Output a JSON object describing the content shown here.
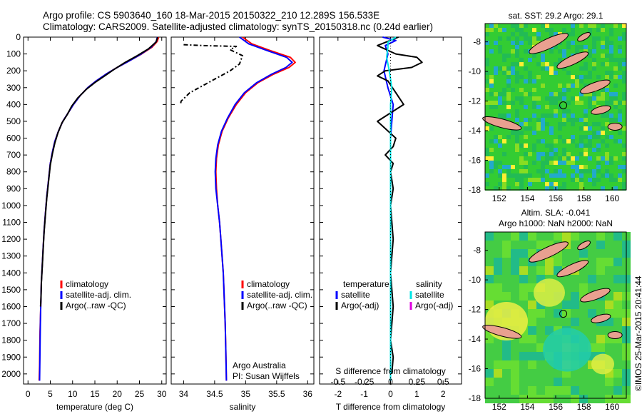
{
  "header": {
    "line1": "Argo profile: CS 5903640_160 18-Mar-2015 20150322_210 12.289S 156.533E",
    "line2": "Climatology: CARS2009. Satellite-adjusted climatology: synTS_20150318.nc (0.24d earlier)"
  },
  "colors": {
    "clim": "#ff0000",
    "sat": "#0000ff",
    "argo": "#000000",
    "sal_sat": "#00e5e5",
    "sal_argo": "#e000e0",
    "land": "#e9a090"
  },
  "chart_data": [
    {
      "type": "line",
      "id": "temperature",
      "xlabel": "temperature (deg C)",
      "ylabel": "",
      "xlim": [
        -1,
        31
      ],
      "ylim": [
        2060,
        0
      ],
      "xticks": [
        0,
        5,
        10,
        15,
        20,
        25,
        30
      ],
      "xtick_labels": [
        "0",
        "5",
        "10",
        "15",
        "20",
        "25",
        "30"
      ],
      "yticks": [
        0,
        100,
        200,
        300,
        400,
        500,
        600,
        700,
        800,
        900,
        1000,
        1100,
        1200,
        1300,
        1400,
        1500,
        1600,
        1700,
        1800,
        1900,
        2000
      ],
      "ytick_labels": [
        "0",
        "100",
        "200",
        "300",
        "400",
        "500",
        "600",
        "700",
        "800",
        "900",
        "1000",
        "1100",
        "1200",
        "1300",
        "1400",
        "1500",
        "1600",
        "1700",
        "1800",
        "1900",
        "2000"
      ],
      "legend": [
        "climatology",
        "satellite-adj. clim.",
        "Argo(..raw -QC)"
      ],
      "series": [
        {
          "name": "climatology",
          "color": "#ff0000",
          "x": [
            29.3,
            29.0,
            27.8,
            25.5,
            22.8,
            20.0,
            17.5,
            15.3,
            13.4,
            11.6,
            10.2,
            9.0,
            7.8,
            6.8,
            6.0,
            5.5,
            5.0,
            4.6,
            4.2,
            3.9,
            3.6,
            3.4,
            3.2,
            3.0,
            2.9,
            2.8,
            2.7,
            2.65,
            2.6,
            2.5
          ],
          "y": [
            0,
            25,
            60,
            100,
            140,
            180,
            220,
            260,
            300,
            350,
            400,
            450,
            500,
            560,
            620,
            680,
            750,
            850,
            950,
            1050,
            1150,
            1250,
            1350,
            1450,
            1550,
            1650,
            1750,
            1850,
            1950,
            2040
          ]
        },
        {
          "name": "satellite-adj. clim.",
          "color": "#0000ff",
          "x": [
            29.0,
            28.8,
            27.6,
            25.4,
            22.8,
            20.0,
            17.5,
            15.3,
            13.4,
            11.6,
            10.2,
            9.0,
            7.8,
            6.8,
            6.0,
            5.5,
            5.0,
            4.6,
            4.2,
            3.9,
            3.6,
            3.4,
            3.2,
            3.0,
            2.9,
            2.8,
            2.75,
            2.7,
            2.65,
            2.6
          ],
          "y": [
            0,
            25,
            60,
            100,
            140,
            180,
            220,
            260,
            300,
            350,
            400,
            450,
            500,
            560,
            620,
            680,
            750,
            850,
            950,
            1050,
            1150,
            1250,
            1350,
            1450,
            1550,
            1650,
            1750,
            1850,
            1950,
            2040
          ]
        },
        {
          "name": "Argo(..raw -QC)",
          "color": "#000000",
          "x": [
            29.1,
            28.7,
            27.0,
            24.5,
            21.8,
            19.4,
            17.2,
            15.0,
            13.1,
            11.2,
            9.8,
            8.8,
            7.6,
            6.7,
            6.0,
            5.5,
            5.0,
            4.6,
            4.2,
            3.9,
            3.6,
            3.4,
            3.2,
            3.0,
            2.9,
            2.8
          ],
          "y": [
            0,
            30,
            70,
            110,
            150,
            190,
            230,
            270,
            310,
            360,
            410,
            460,
            510,
            570,
            630,
            690,
            760,
            860,
            960,
            1060,
            1160,
            1260,
            1360,
            1460,
            1560,
            1600
          ]
        }
      ]
    },
    {
      "type": "line",
      "id": "salinity",
      "xlabel": "salinity",
      "ylabel": "",
      "xlim": [
        33.8,
        36.1
      ],
      "ylim": [
        2060,
        0
      ],
      "xticks": [
        34,
        34.5,
        35,
        35.5,
        36
      ],
      "xtick_labels": [
        "34",
        "34.5",
        "35",
        "35.5",
        "36"
      ],
      "legend": [
        "climatology",
        "satellite-adj. clim.",
        "Argo(..raw -QC)"
      ],
      "annotation": [
        "Argo Australia",
        "PI: Susan Wijffels"
      ],
      "series": [
        {
          "name": "climatology",
          "color": "#ff0000",
          "x": [
            34.95,
            35.1,
            35.4,
            35.72,
            35.8,
            35.7,
            35.45,
            35.2,
            35.0,
            34.85,
            34.72,
            34.62,
            34.56,
            34.53,
            34.52,
            34.53,
            34.55,
            34.58,
            34.6,
            34.62,
            34.64,
            34.65,
            34.66,
            34.67,
            34.68,
            34.69
          ],
          "y": [
            0,
            40,
            80,
            120,
            150,
            180,
            220,
            270,
            330,
            400,
            480,
            560,
            640,
            720,
            800,
            900,
            1000,
            1100,
            1200,
            1300,
            1400,
            1500,
            1600,
            1700,
            1850,
            2040
          ]
        },
        {
          "name": "satellite-adj. clim.",
          "color": "#0000ff",
          "x": [
            34.9,
            35.05,
            35.35,
            35.66,
            35.75,
            35.65,
            35.42,
            35.18,
            34.98,
            34.83,
            34.71,
            34.61,
            34.55,
            34.52,
            34.51,
            34.52,
            34.55,
            34.58,
            34.6,
            34.62,
            34.64,
            34.65,
            34.66,
            34.67,
            34.68,
            34.69
          ],
          "y": [
            0,
            40,
            80,
            120,
            150,
            180,
            220,
            270,
            330,
            400,
            480,
            560,
            640,
            720,
            800,
            900,
            1000,
            1100,
            1200,
            1300,
            1400,
            1500,
            1600,
            1700,
            1850,
            2040
          ]
        },
        {
          "name": "Argo(..raw -QC)",
          "color": "#000000",
          "dashed": true,
          "x": [
            34.0,
            34.3,
            34.85,
            34.75,
            34.95,
            34.9,
            34.75,
            34.55,
            34.35,
            34.1,
            33.96,
            33.95
          ],
          "y": [
            45,
            50,
            55,
            75,
            110,
            160,
            200,
            240,
            280,
            330,
            380,
            400
          ]
        }
      ]
    },
    {
      "type": "line",
      "id": "difference",
      "xlabel": "T difference from climatology",
      "ylabel": "",
      "xlim": [
        -2.7,
        2.7
      ],
      "ylim": [
        2060,
        0
      ],
      "xticks": [
        -2,
        -1,
        0,
        1,
        2
      ],
      "xtick_labels": [
        "-2",
        "-1",
        "0",
        "1",
        "2"
      ],
      "top_label": "S difference from climatology",
      "top_ticks": [
        "-0.5",
        "-0.25",
        "0",
        "0.25",
        "0.5"
      ],
      "legend_temperature": {
        "title": "temperature",
        "items": [
          "satellite",
          "Argo(-adj)"
        ]
      },
      "legend_salinity": {
        "title": "salinity",
        "items": [
          "satellite",
          "Argo(-adj)"
        ]
      },
      "series": [
        {
          "name": "T satellite",
          "color": "#0000ff",
          "x": [
            -0.3,
            0.2,
            -0.2,
            -0.1,
            -0.25,
            -0.1,
            0.1,
            0.05,
            0,
            0,
            0,
            0
          ],
          "y": [
            0,
            20,
            50,
            100,
            200,
            300,
            400,
            500,
            600,
            800,
            1200,
            2040
          ]
        },
        {
          "name": "T Argo(-adj)",
          "color": "#000000",
          "x": [
            0.3,
            -0.5,
            0.2,
            1.0,
            1.2,
            0.8,
            -0.2,
            -0.5,
            -0.1,
            0.5,
            -0.5,
            0.2,
            0.1,
            -0.2,
            0.1,
            0,
            0.1,
            0,
            0.1,
            0,
            0.1,
            0,
            0.1,
            0.05
          ],
          "y": [
            0,
            50,
            100,
            120,
            150,
            180,
            200,
            230,
            260,
            400,
            500,
            600,
            650,
            700,
            750,
            800,
            900,
            1000,
            1200,
            1400,
            1600,
            1800,
            1900,
            2000
          ]
        },
        {
          "name": "S satellite",
          "color": "#00e5e5",
          "x": [
            0.2,
            -0.1,
            -0.1,
            -0.15,
            -0.05,
            0.05,
            0,
            0,
            0,
            0
          ],
          "y": [
            0,
            30,
            60,
            120,
            200,
            300,
            400,
            600,
            1000,
            2040
          ]
        }
      ]
    },
    {
      "type": "heatmap",
      "id": "sst_map",
      "title": "sat. SST: 29.2 Argo: 29.1",
      "xticks": [
        "152",
        "154",
        "156",
        "158",
        "160"
      ],
      "yticks": [
        "-8",
        "-10",
        "-12",
        "-14",
        "-16",
        "-18"
      ],
      "marker": {
        "lon": 156.533,
        "lat": -12.289
      }
    },
    {
      "type": "heatmap",
      "id": "sla_map",
      "title": "Altim. SLA: -0.041",
      "subtitle": "Argo h1000: NaN h2000: NaN",
      "xticks": [
        "152",
        "154",
        "156",
        "158",
        "160"
      ],
      "yticks": [
        "-8",
        "-10",
        "-12",
        "-14",
        "-16",
        "-18"
      ],
      "marker": {
        "lon": 156.533,
        "lat": -12.289
      }
    }
  ],
  "footer": {
    "side_label": "©IMOS 25-Mar-2015 20:41:44"
  }
}
